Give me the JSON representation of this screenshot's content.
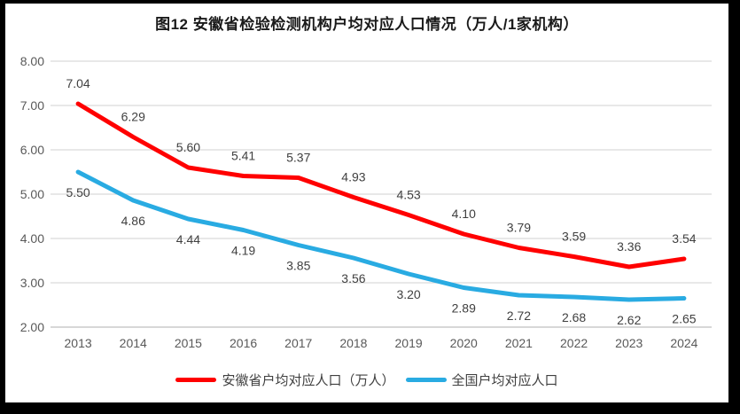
{
  "title": "图12 安徽省检验检测机构户均对应人口情况（万人/1家机构）",
  "colors": {
    "frame": "#000000",
    "canvas": "#ffffff",
    "gridline": "#d9d9d9",
    "axis_line": "#bfbfbf",
    "tick_label": "#595959",
    "data_label": "#404040",
    "title_text": "#1a1a1a"
  },
  "chart_data": {
    "type": "line",
    "title": "图12 安徽省检验检测机构户均对应人口情况（万人/1家机构）",
    "categories": [
      "2013",
      "2014",
      "2015",
      "2016",
      "2017",
      "2018",
      "2019",
      "2020",
      "2021",
      "2022",
      "2023",
      "2024"
    ],
    "series": [
      {
        "name": "安徽省户均对应人口（万人）",
        "color": "#ff0000",
        "label_position": "above",
        "values": [
          7.04,
          6.29,
          5.6,
          5.41,
          5.37,
          4.93,
          4.53,
          4.1,
          3.79,
          3.59,
          3.36,
          3.54
        ]
      },
      {
        "name": "全国户均对应人口",
        "color": "#29abe2",
        "label_position": "below",
        "values": [
          5.5,
          4.86,
          4.44,
          4.19,
          3.85,
          3.56,
          3.2,
          2.89,
          2.72,
          2.68,
          2.62,
          2.65
        ]
      }
    ],
    "xlabel": "",
    "ylabel": "",
    "ylim": [
      2.0,
      8.0
    ],
    "ytick_step": 1.0,
    "ytick_format": "0.00",
    "grid": "horizontal",
    "legend_position": "bottom"
  }
}
